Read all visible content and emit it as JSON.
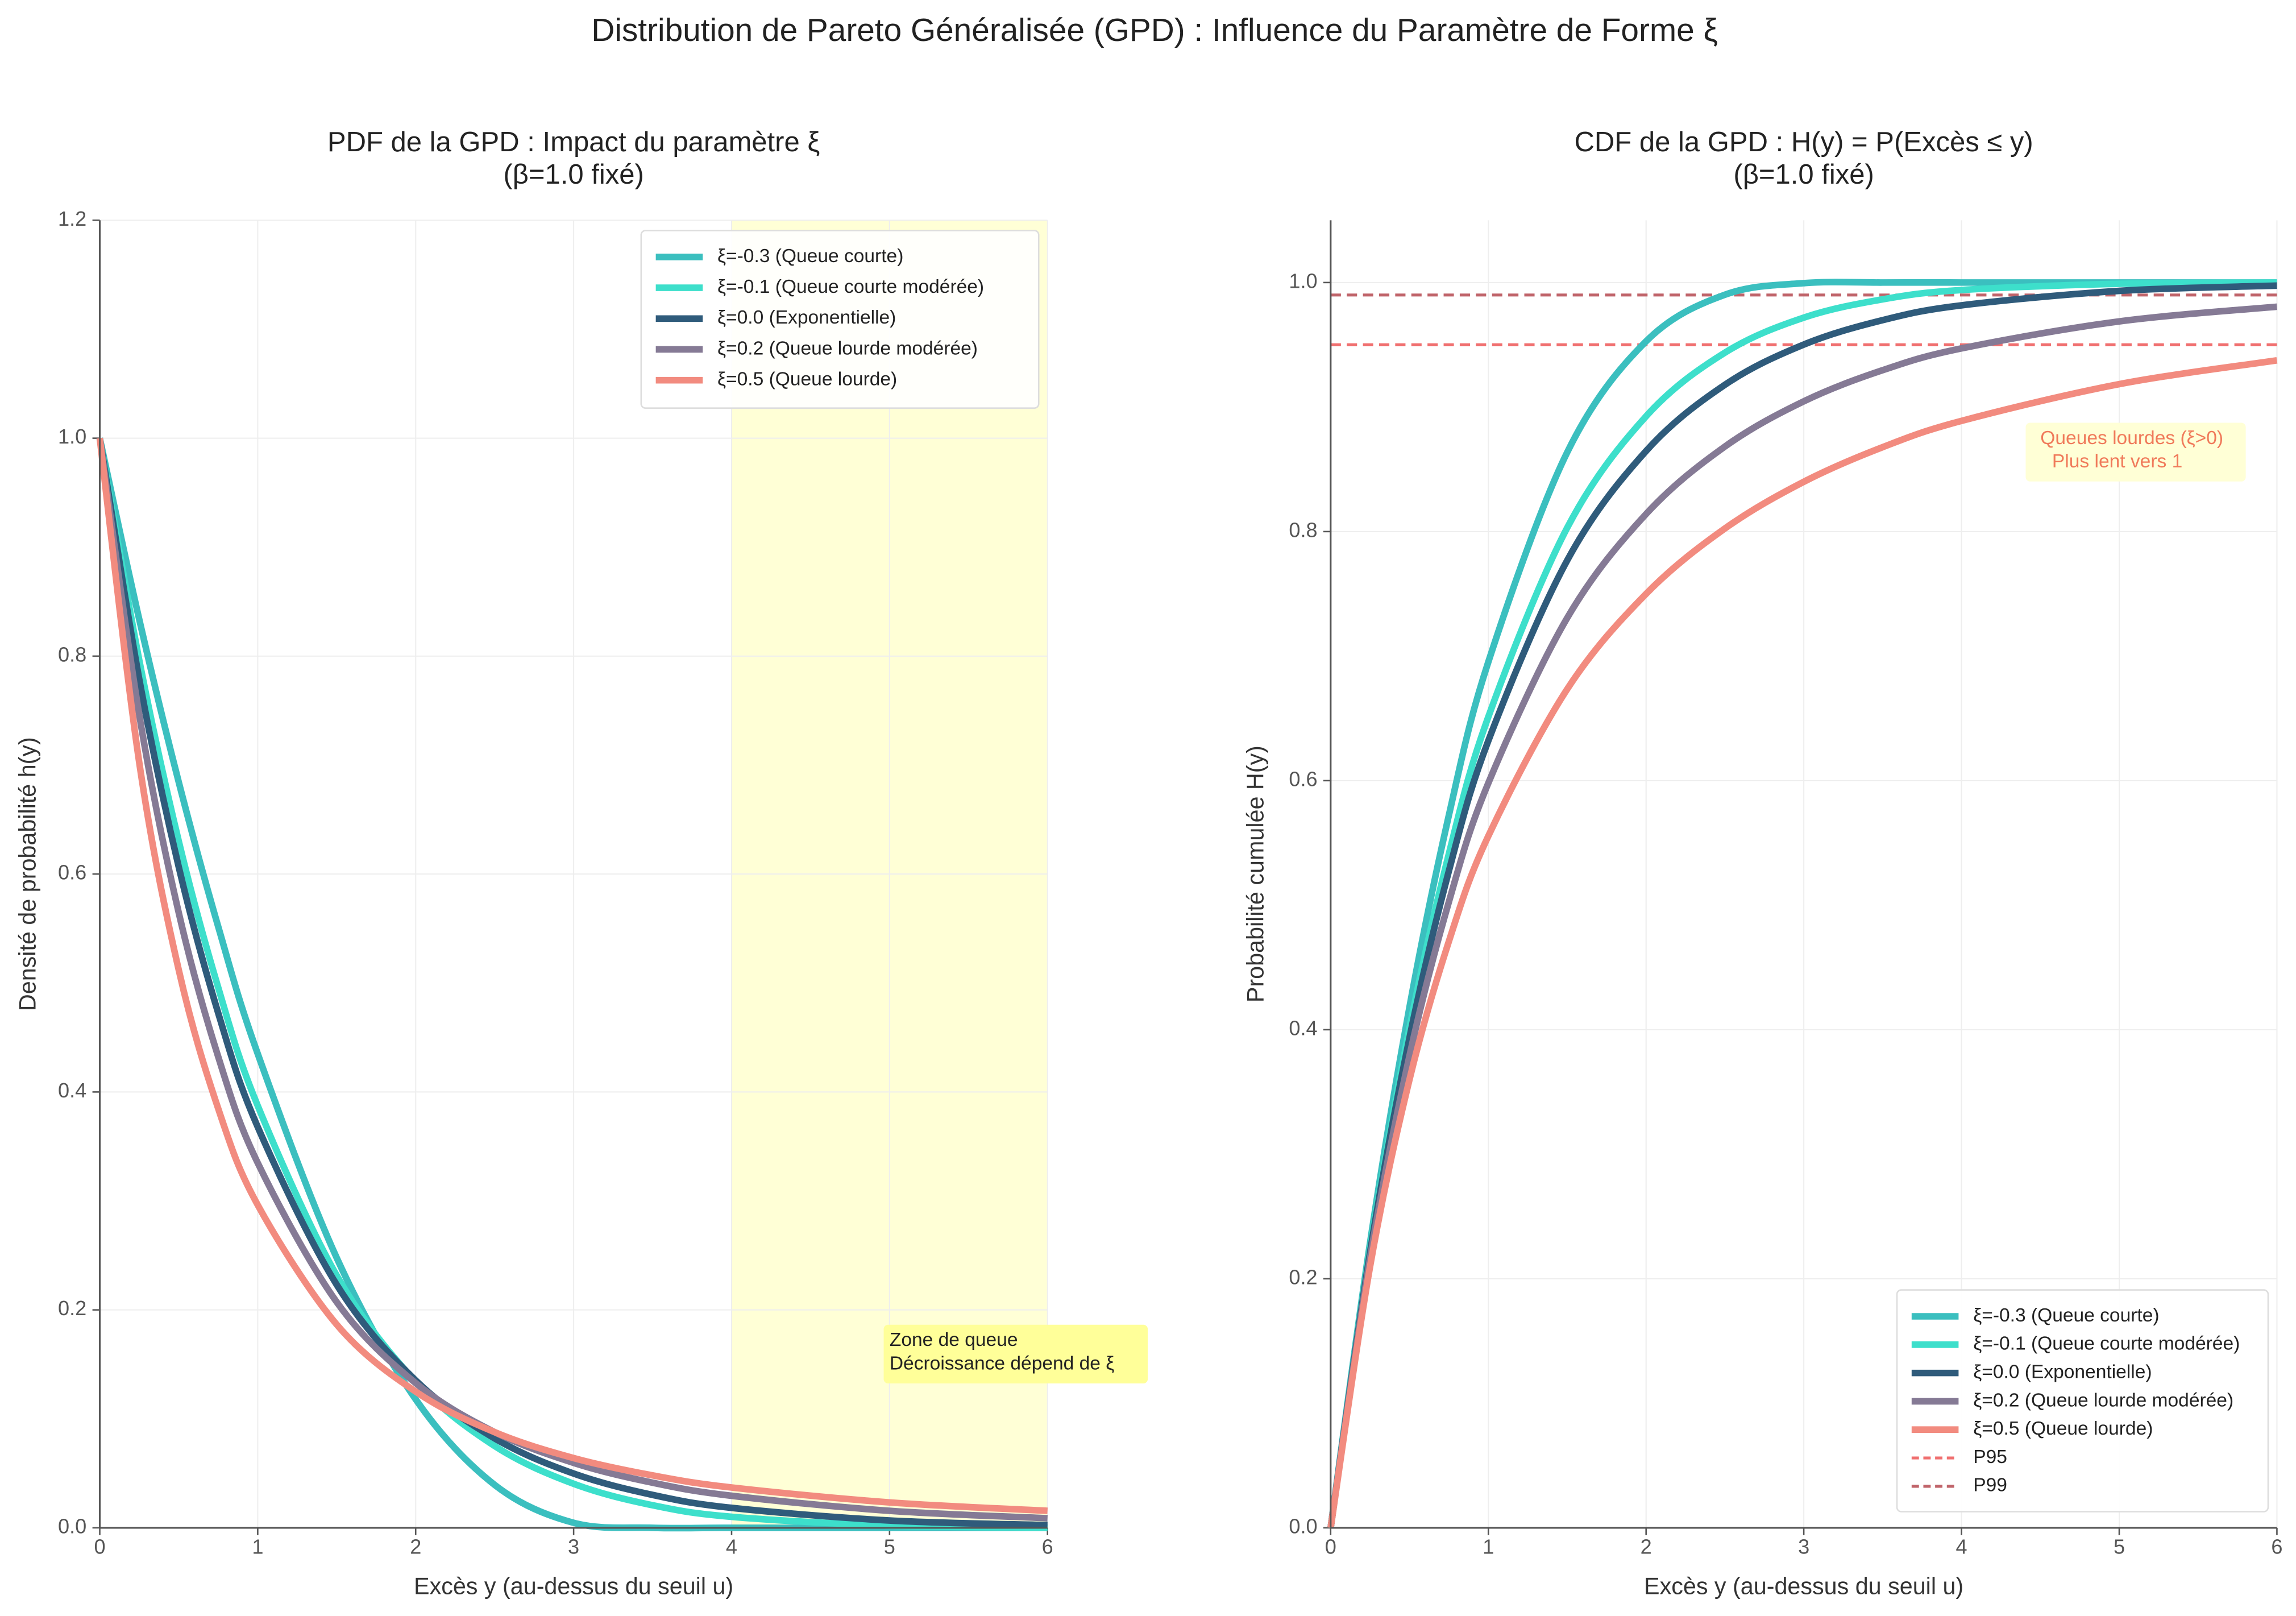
{
  "title": "Distribution de Pareto Généralisée (GPD) : Influence du Paramètre de Forme ξ",
  "chart_data": [
    {
      "type": "line",
      "title": [
        "PDF de la GPD : Impact du paramètre ξ",
        "(β=1.0 fixé)"
      ],
      "x_label": "Excès y (au-dessus du seuil u)",
      "y_label": "Densité de probabilité h(y)",
      "x": [
        0,
        0.25,
        0.5,
        0.75,
        1,
        1.5,
        2,
        2.5,
        3,
        3.5,
        4,
        5,
        6
      ],
      "series": [
        {
          "name": "ξ=-0.3 (Queue courte)",
          "color": "#3bbfbf",
          "values": [
            1,
            0.8337,
            0.6844,
            0.5517,
            0.4351,
            0.2478,
            0.1179,
            0.0394,
            0.0046,
            0,
            0,
            0,
            0
          ]
        },
        {
          "name": "ξ=-0.1 (Queue courte modérée)",
          "color": "#3ddfcb",
          "values": [
            1,
            0.7963,
            0.6302,
            0.4958,
            0.3874,
            0.2316,
            0.1342,
            0.0751,
            0.0404,
            0.0207,
            0.0101,
            0.002,
            0.0003
          ]
        },
        {
          "name": "ξ=0.0 (Exponentielle)",
          "color": "#2f5b7b",
          "values": [
            1,
            0.7788,
            0.6065,
            0.4724,
            0.3679,
            0.2231,
            0.1353,
            0.0821,
            0.0498,
            0.0302,
            0.0183,
            0.0067,
            0.0025
          ]
        },
        {
          "name": "ξ=0.2 (Queue lourde modérée)",
          "color": "#857a95",
          "values": [
            1,
            0.7462,
            0.5645,
            0.4323,
            0.3349,
            0.2072,
            0.1328,
            0.0878,
            0.0596,
            0.0414,
            0.0294,
            0.0156,
            0.0088
          ]
        },
        {
          "name": "ξ=0.5 (Queue lourde)",
          "color": "#f28b7f",
          "values": [
            1,
            0.7023,
            0.512,
            0.3847,
            0.2963,
            0.1866,
            0.125,
            0.0878,
            0.064,
            0.0481,
            0.037,
            0.0233,
            0.0156
          ]
        }
      ],
      "span": [
        4,
        6
      ],
      "span_color": "#ffffd6",
      "annotation": [
        "Zone de queue",
        "Décroissance dépend de ξ"
      ],
      "annotation_color": "#ffff99",
      "xlim": [
        0,
        6
      ],
      "xticks": [
        0,
        1,
        2,
        3,
        4,
        5,
        6
      ],
      "ylim": [
        0,
        1.2
      ],
      "yticks": [
        0.0,
        0.2,
        0.4,
        0.6,
        0.8,
        1.0,
        1.2
      ],
      "grid": true,
      "legend": "upper right"
    },
    {
      "type": "line",
      "title": [
        "CDF de la GPD : H(y) = P(Excès ≤ y)",
        "(β=1.0 fixé)"
      ],
      "x_label": "Excès y (au-dessus du seuil u)",
      "y_label": "Probabilité cumulée H(y)",
      "x": [
        0,
        0.25,
        0.5,
        0.75,
        1,
        1.5,
        2,
        2.5,
        3,
        3.5,
        4,
        5,
        6
      ],
      "series": [
        {
          "name": "ξ=-0.3 (Queue courte)",
          "color": "#3bbfbf",
          "values": [
            0,
            0.2289,
            0.4182,
            0.5724,
            0.6954,
            0.8637,
            0.9528,
            0.9902,
            0.9995,
            1,
            1,
            1,
            1
          ]
        },
        {
          "name": "ξ=-0.1 (Queue courte modérée)",
          "color": "#3ddfcb",
          "values": [
            0,
            0.2237,
            0.4013,
            0.5414,
            0.6513,
            0.8031,
            0.8926,
            0.9437,
            0.9718,
            0.9865,
            0.994,
            0.999,
            0.9999
          ]
        },
        {
          "name": "ξ=0.0 (Exponentielle)",
          "color": "#2f5b7b",
          "values": [
            0,
            0.2212,
            0.3935,
            0.5276,
            0.6321,
            0.7769,
            0.8647,
            0.9179,
            0.9502,
            0.9698,
            0.9817,
            0.9933,
            0.9975
          ]
        },
        {
          "name": "ξ=0.2 (Queue lourde modérée)",
          "color": "#857a95",
          "values": [
            0,
            0.2165,
            0.3791,
            0.5028,
            0.5981,
            0.7307,
            0.8141,
            0.8683,
            0.9046,
            0.9296,
            0.9471,
            0.9688,
            0.9806
          ]
        },
        {
          "name": "ξ=0.5 (Queue lourde)",
          "color": "#f28b7f",
          "values": [
            0,
            0.2099,
            0.36,
            0.4711,
            0.5556,
            0.6735,
            0.75,
            0.8025,
            0.84,
            0.8678,
            0.8889,
            0.9184,
            0.9375
          ]
        }
      ],
      "hlines": [
        {
          "name": "P95",
          "value": 0.95,
          "color": "#f07070"
        },
        {
          "name": "P99",
          "value": 0.99,
          "color": "#c0646a"
        }
      ],
      "annotation": [
        "Queues lourdes (ξ>0)",
        "Plus lent vers 1"
      ],
      "annotation_color": "#ffffd6",
      "annotation_text_color": "#f07a5a",
      "xlim": [
        0,
        6
      ],
      "xticks": [
        0,
        1,
        2,
        3,
        4,
        5,
        6
      ],
      "ylim": [
        0,
        1.05
      ],
      "yticks": [
        0.0,
        0.2,
        0.4,
        0.6,
        0.8,
        1.0
      ],
      "grid": true,
      "legend": "lower right"
    }
  ]
}
